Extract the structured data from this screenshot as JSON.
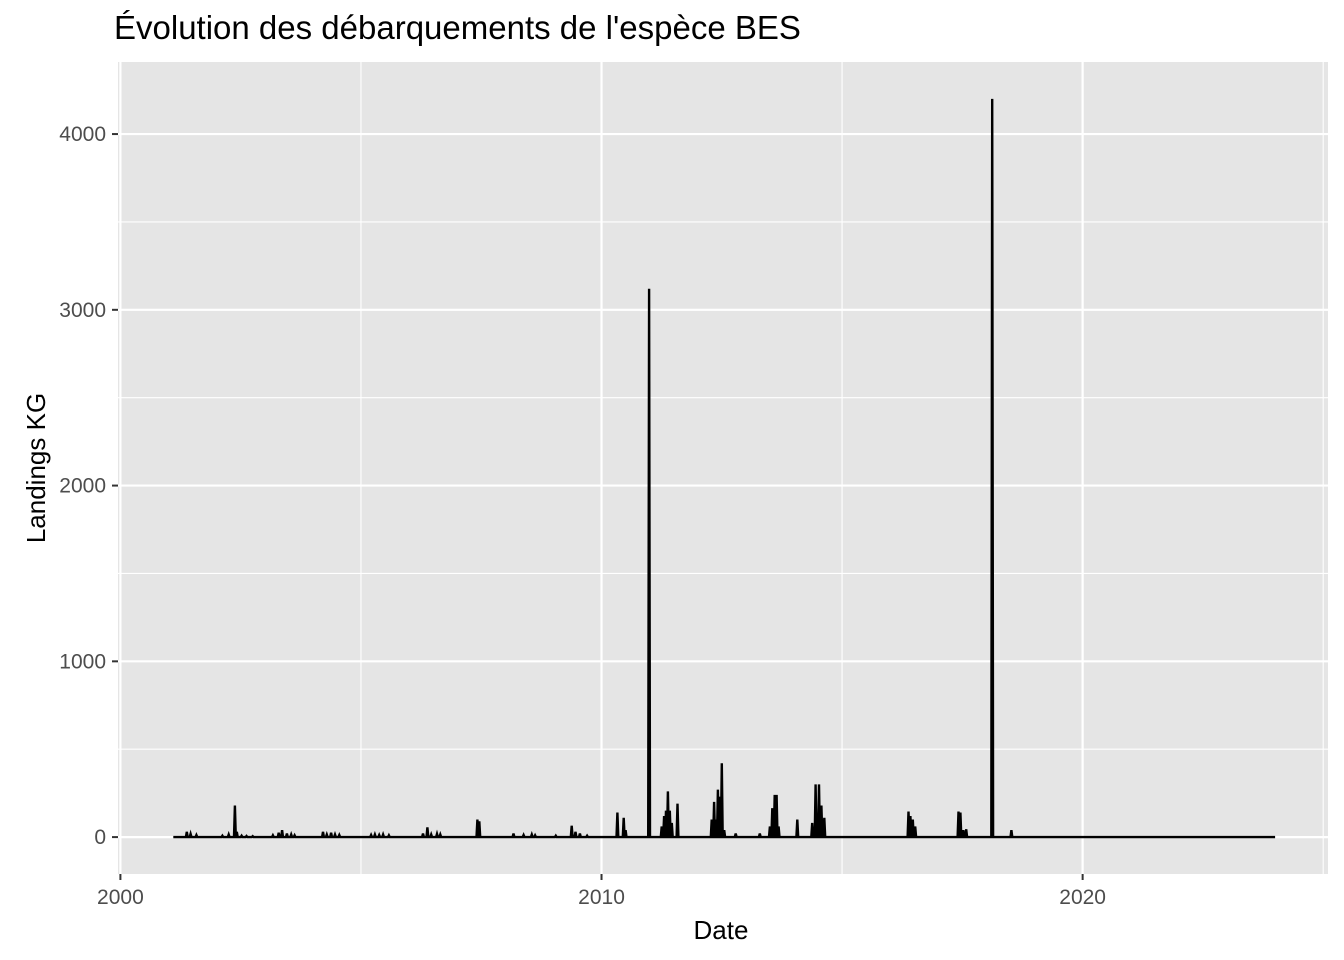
{
  "chart_data": {
    "type": "line",
    "title": "Évolution des débarquements de l'espèce BES",
    "xlabel": "Date",
    "ylabel": "Landings KG",
    "x_ticks": [
      2000,
      2010,
      2020
    ],
    "y_ticks": [
      0,
      1000,
      2000,
      3000,
      4000
    ],
    "xlim": [
      1999.95,
      2025.1
    ],
    "ylim": [
      -210,
      4410
    ],
    "grid": true,
    "legend": "none",
    "colors": {
      "panel": "#e5e5e5",
      "grid": "#ffffff",
      "line": "#000000",
      "tick_text": "#4d4d4d"
    },
    "baseline_start": 2001.1,
    "baseline_end": 2024.0,
    "points": [
      [
        2001.38,
        30
      ],
      [
        2001.46,
        18
      ],
      [
        2001.58,
        12
      ],
      [
        2002.12,
        8
      ],
      [
        2002.25,
        15
      ],
      [
        2002.38,
        180
      ],
      [
        2002.42,
        30
      ],
      [
        2002.52,
        8
      ],
      [
        2002.62,
        6
      ],
      [
        2002.75,
        5
      ],
      [
        2003.17,
        10
      ],
      [
        2003.29,
        25
      ],
      [
        2003.36,
        40
      ],
      [
        2003.46,
        20
      ],
      [
        2003.55,
        15
      ],
      [
        2003.62,
        10
      ],
      [
        2004.21,
        30
      ],
      [
        2004.29,
        15
      ],
      [
        2004.38,
        25
      ],
      [
        2004.46,
        15
      ],
      [
        2004.55,
        12
      ],
      [
        2005.21,
        12
      ],
      [
        2005.29,
        15
      ],
      [
        2005.38,
        12
      ],
      [
        2005.46,
        15
      ],
      [
        2005.58,
        10
      ],
      [
        2006.29,
        20
      ],
      [
        2006.38,
        55
      ],
      [
        2006.46,
        15
      ],
      [
        2006.58,
        18
      ],
      [
        2006.65,
        15
      ],
      [
        2007.42,
        100
      ],
      [
        2007.46,
        90
      ],
      [
        2008.17,
        20
      ],
      [
        2008.38,
        12
      ],
      [
        2008.55,
        15
      ],
      [
        2008.62,
        10
      ],
      [
        2009.05,
        8
      ],
      [
        2009.38,
        65
      ],
      [
        2009.46,
        30
      ],
      [
        2009.55,
        20
      ],
      [
        2009.7,
        8
      ],
      [
        2010.33,
        140
      ],
      [
        2010.46,
        110
      ],
      [
        2010.5,
        40
      ],
      [
        2010.99,
        3120
      ],
      [
        2011.25,
        60
      ],
      [
        2011.3,
        120
      ],
      [
        2011.34,
        150
      ],
      [
        2011.38,
        260
      ],
      [
        2011.42,
        150
      ],
      [
        2011.46,
        80
      ],
      [
        2011.58,
        190
      ],
      [
        2012.29,
        100
      ],
      [
        2012.34,
        200
      ],
      [
        2012.38,
        100
      ],
      [
        2012.42,
        270
      ],
      [
        2012.46,
        230
      ],
      [
        2012.5,
        420
      ],
      [
        2012.55,
        40
      ],
      [
        2012.79,
        20
      ],
      [
        2013.29,
        20
      ],
      [
        2013.5,
        60
      ],
      [
        2013.55,
        165
      ],
      [
        2013.6,
        240
      ],
      [
        2013.64,
        240
      ],
      [
        2013.68,
        60
      ],
      [
        2014.07,
        100
      ],
      [
        2014.38,
        80
      ],
      [
        2014.45,
        300
      ],
      [
        2014.52,
        300
      ],
      [
        2014.57,
        180
      ],
      [
        2014.63,
        110
      ],
      [
        2016.38,
        145
      ],
      [
        2016.42,
        120
      ],
      [
        2016.47,
        100
      ],
      [
        2016.52,
        60
      ],
      [
        2017.42,
        145
      ],
      [
        2017.46,
        140
      ],
      [
        2017.52,
        40
      ],
      [
        2017.58,
        45
      ],
      [
        2018.12,
        4200
      ],
      [
        2018.52,
        40
      ]
    ]
  }
}
